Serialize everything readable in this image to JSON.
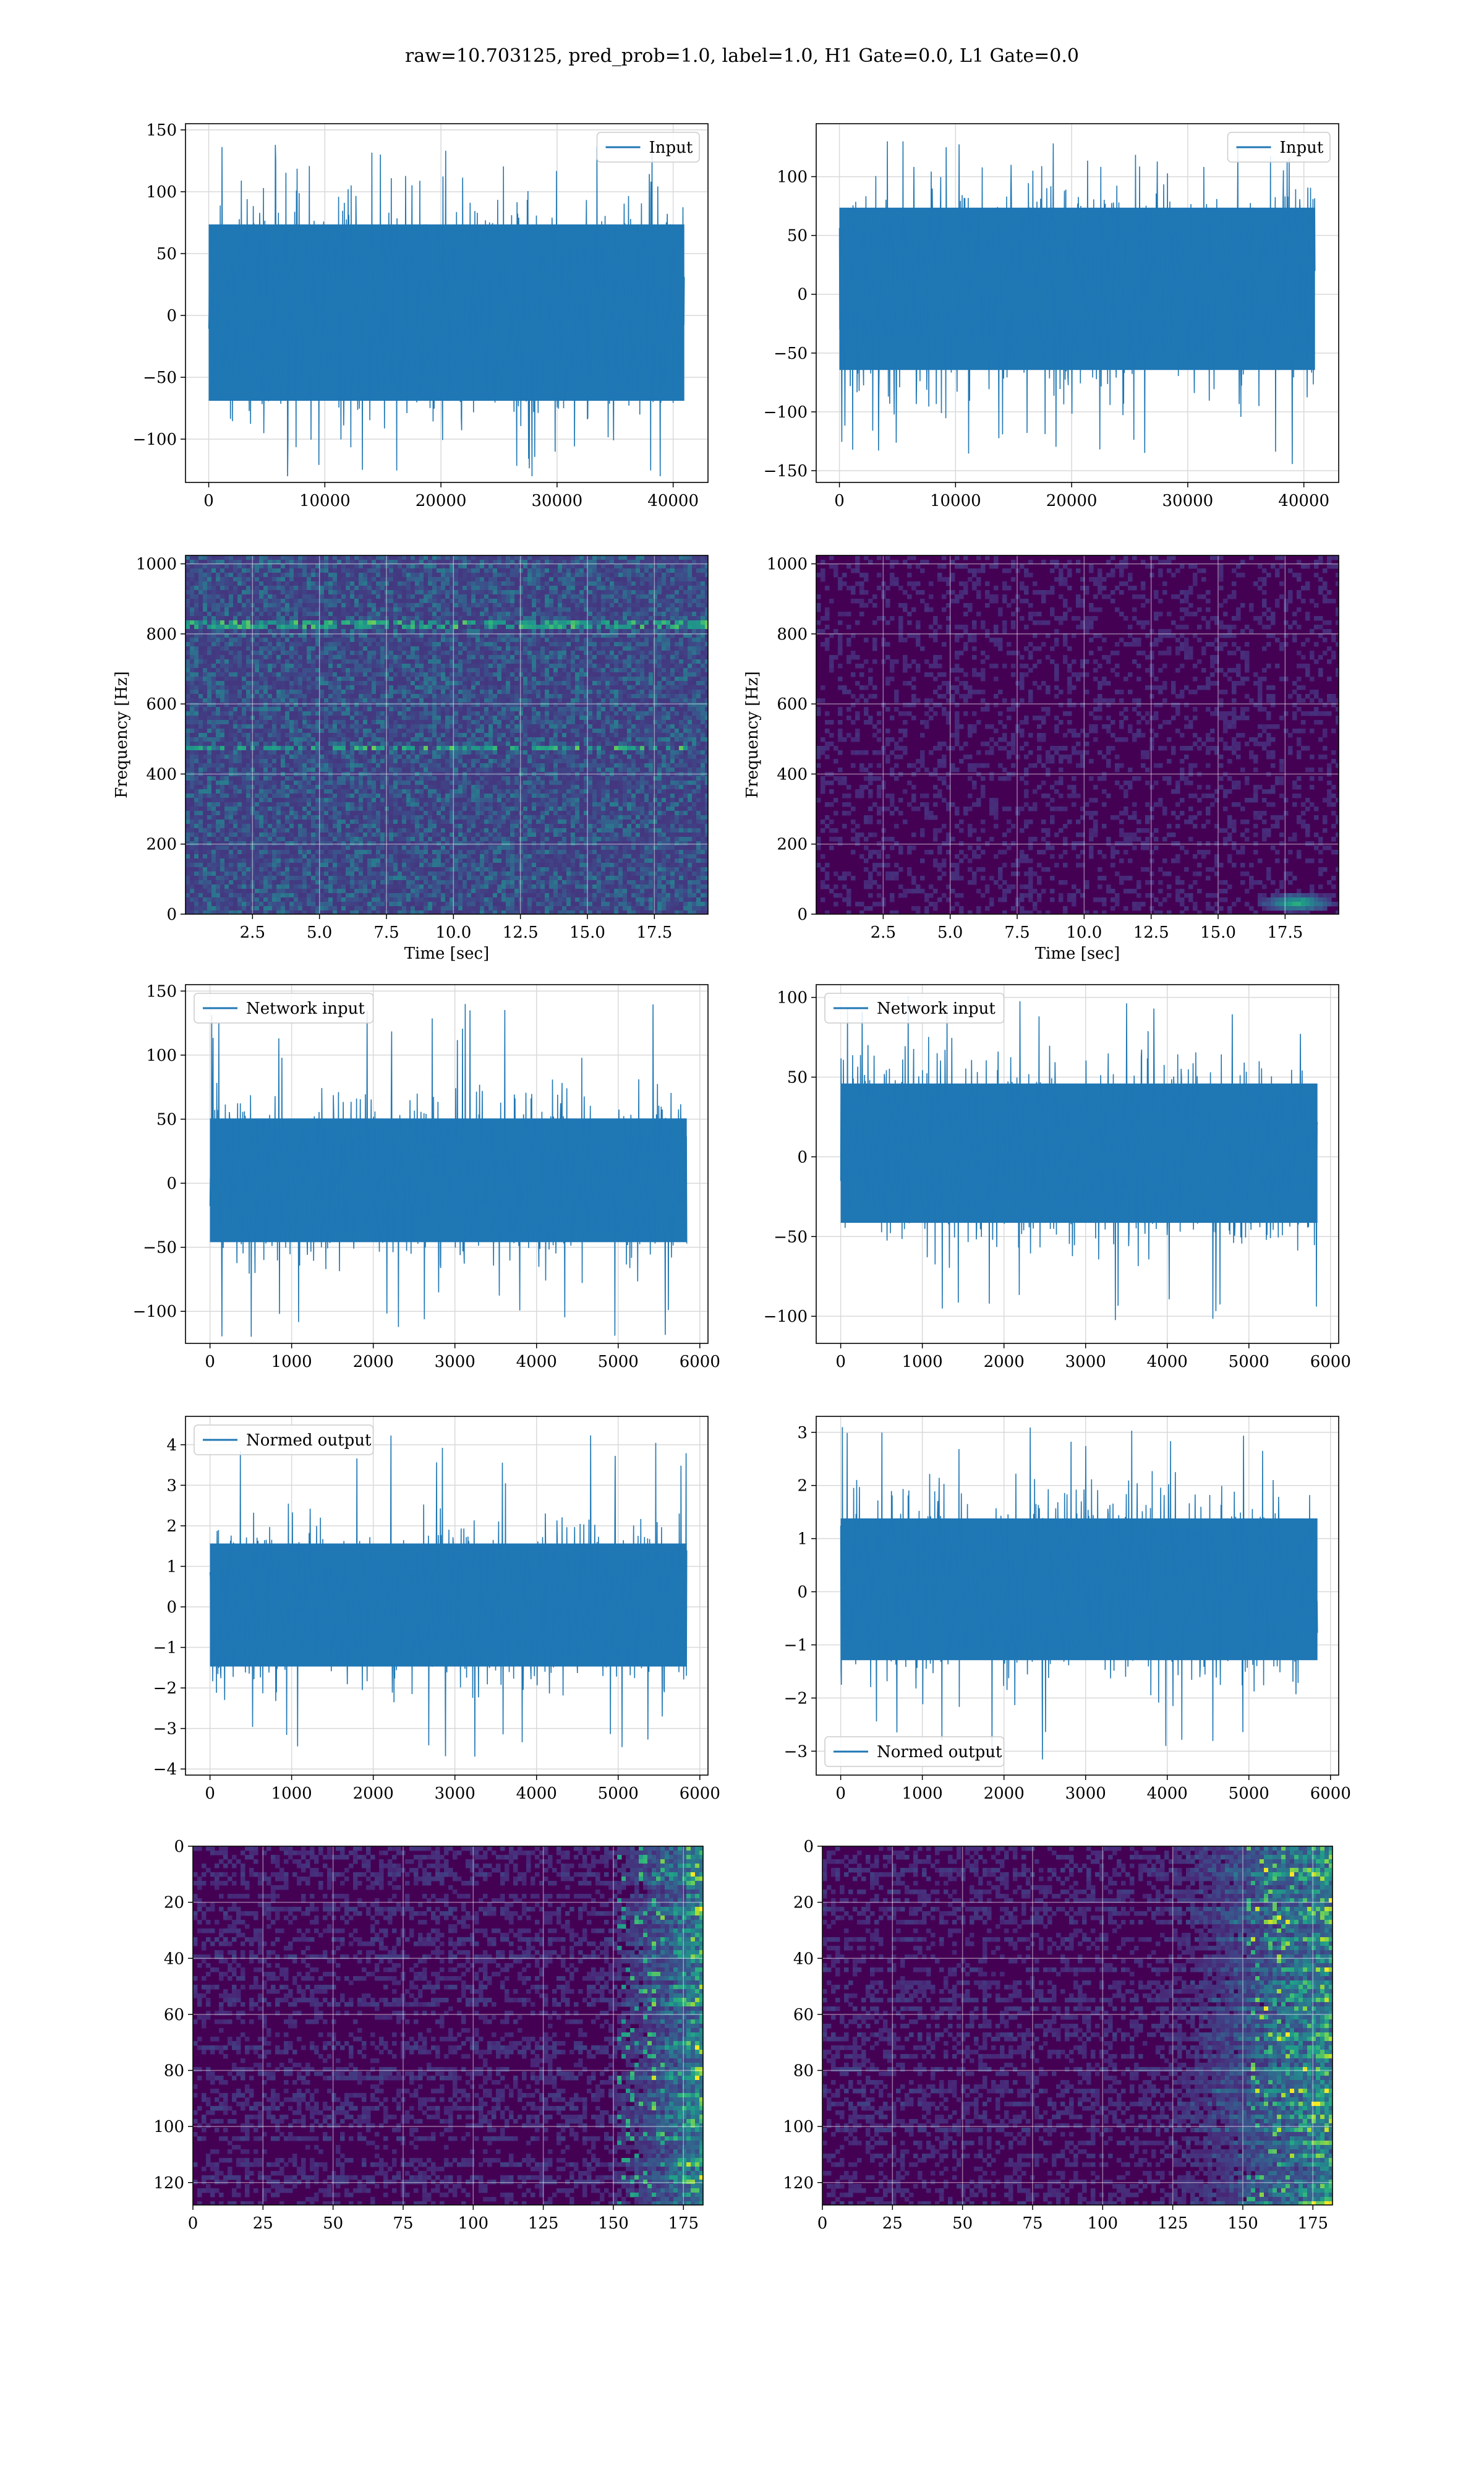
{
  "figure_title": "raw=10.703125, pred_prob=1.0, label=1.0, H1 Gate=0.0, L1 Gate=0.0",
  "colors": {
    "series": "#1f77b4",
    "grid": "#d9d9d9",
    "heatmap_bg": "#440154"
  },
  "chart_data": [
    {
      "id": "input-h1",
      "type": "line",
      "title": "",
      "xlabel": "",
      "ylabel": "",
      "series": [
        {
          "name": "Input",
          "samples": 40960,
          "amplitude_band": [
            -75,
            80
          ],
          "spike_range": [
            -130,
            140
          ]
        }
      ],
      "xlim": [
        -2000,
        43000
      ],
      "ylim": [
        -135,
        155
      ],
      "xticks": [
        0,
        10000,
        20000,
        30000,
        40000
      ],
      "yticks": [
        -100,
        -50,
        0,
        50,
        100,
        150
      ],
      "legend": "upper right",
      "grid": true
    },
    {
      "id": "input-l1",
      "type": "line",
      "title": "",
      "xlabel": "",
      "ylabel": "",
      "series": [
        {
          "name": "Input",
          "samples": 40960,
          "amplitude_band": [
            -70,
            80
          ],
          "spike_range": [
            -145,
            130
          ]
        }
      ],
      "xlim": [
        -2000,
        43000
      ],
      "ylim": [
        -160,
        145
      ],
      "xticks": [
        0,
        10000,
        20000,
        30000,
        40000
      ],
      "yticks": [
        -150,
        -100,
        -50,
        0,
        50,
        100
      ],
      "legend": "upper right",
      "grid": true
    },
    {
      "id": "spectrogram-h1",
      "type": "heatmap",
      "title": "",
      "xlabel": "Time [sec]",
      "ylabel": "Frequency [Hz]",
      "xlim": [
        0,
        19.5
      ],
      "ylim": [
        0,
        1024
      ],
      "xticks": [
        2.5,
        5.0,
        7.5,
        10.0,
        12.5,
        15.0,
        17.5
      ],
      "yticks": [
        0,
        200,
        400,
        600,
        800,
        1000
      ],
      "colormap": "viridis",
      "intensity": "medium",
      "bright_lines_hz": [
        830,
        480
      ],
      "grid": true
    },
    {
      "id": "spectrogram-l1",
      "type": "heatmap",
      "title": "",
      "xlabel": "Time [sec]",
      "ylabel": "Frequency [Hz]",
      "xlim": [
        0,
        19.5
      ],
      "ylim": [
        0,
        1024
      ],
      "xticks": [
        2.5,
        5.0,
        7.5,
        10.0,
        12.5,
        15.0,
        17.5
      ],
      "yticks": [
        0,
        200,
        400,
        600,
        800,
        1000
      ],
      "colormap": "viridis",
      "intensity": "low",
      "bright_spot": {
        "t": 17.8,
        "f": 40
      },
      "grid": true
    },
    {
      "id": "network-input-h1",
      "type": "line",
      "title": "",
      "xlabel": "",
      "ylabel": "",
      "series": [
        {
          "name": "Network input",
          "samples": 5840,
          "amplitude_band": [
            -50,
            55
          ],
          "spike_range": [
            -120,
            140
          ]
        }
      ],
      "xlim": [
        -300,
        6100
      ],
      "ylim": [
        -125,
        155
      ],
      "xticks": [
        0,
        1000,
        2000,
        3000,
        4000,
        5000,
        6000
      ],
      "yticks": [
        -100,
        -50,
        0,
        50,
        100,
        150
      ],
      "legend": "upper left",
      "grid": true
    },
    {
      "id": "network-input-l1",
      "type": "line",
      "title": "",
      "xlabel": "",
      "ylabel": "",
      "series": [
        {
          "name": "Network input",
          "samples": 5840,
          "amplitude_band": [
            -45,
            50
          ],
          "spike_range": [
            -105,
            103
          ]
        }
      ],
      "xlim": [
        -300,
        6100
      ],
      "ylim": [
        -117,
        108
      ],
      "xticks": [
        0,
        1000,
        2000,
        3000,
        4000,
        5000,
        6000
      ],
      "yticks": [
        -100,
        -50,
        0,
        50,
        100
      ],
      "legend": "upper left",
      "grid": true
    },
    {
      "id": "normed-output-h1",
      "type": "line",
      "title": "",
      "xlabel": "",
      "ylabel": "",
      "series": [
        {
          "name": "Normed output",
          "samples": 5840,
          "amplitude_band": [
            -1.6,
            1.7
          ],
          "spike_range": [
            -3.7,
            4.4
          ]
        }
      ],
      "xlim": [
        -300,
        6100
      ],
      "ylim": [
        -4.15,
        4.7
      ],
      "xticks": [
        0,
        1000,
        2000,
        3000,
        4000,
        5000,
        6000
      ],
      "yticks": [
        -4,
        -3,
        -2,
        -1,
        0,
        1,
        2,
        3,
        4
      ],
      "legend": "upper left",
      "grid": true
    },
    {
      "id": "normed-output-l1",
      "type": "line",
      "title": "",
      "xlabel": "",
      "ylabel": "",
      "series": [
        {
          "name": "Normed output",
          "samples": 5840,
          "amplitude_band": [
            -1.4,
            1.5
          ],
          "spike_range": [
            -3.2,
            3.1
          ]
        }
      ],
      "xlim": [
        -300,
        6100
      ],
      "ylim": [
        -3.45,
        3.3
      ],
      "xticks": [
        0,
        1000,
        2000,
        3000,
        4000,
        5000,
        6000
      ],
      "yticks": [
        -3,
        -2,
        -1,
        0,
        1,
        2,
        3
      ],
      "legend": "lower left",
      "grid": true
    },
    {
      "id": "feature-map-h1",
      "type": "heatmap",
      "title": "",
      "xlabel": "",
      "ylabel": "",
      "rows": 128,
      "cols": 182,
      "xlim": [
        0,
        182
      ],
      "ylim": [
        128,
        0
      ],
      "xticks": [
        0,
        25,
        50,
        75,
        100,
        125,
        150,
        175
      ],
      "yticks": [
        0,
        20,
        40,
        60,
        80,
        100,
        120
      ],
      "colormap": "viridis",
      "active_cols": [
        140,
        182
      ],
      "grid": true
    },
    {
      "id": "feature-map-l1",
      "type": "heatmap",
      "title": "",
      "xlabel": "",
      "ylabel": "",
      "rows": 128,
      "cols": 182,
      "xlim": [
        0,
        182
      ],
      "ylim": [
        128,
        0
      ],
      "xticks": [
        0,
        25,
        50,
        75,
        100,
        125,
        150,
        175
      ],
      "yticks": [
        0,
        20,
        40,
        60,
        80,
        100,
        120
      ],
      "colormap": "viridis",
      "active_cols": [
        110,
        182
      ],
      "grid": true
    }
  ]
}
